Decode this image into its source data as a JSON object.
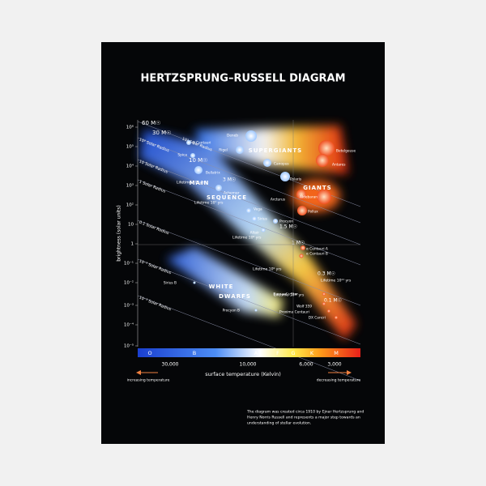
{
  "title": "HERTZSPRUNG–RUSSELL DIAGRAM",
  "y_axis": {
    "label": "brightness (solar units)",
    "ticks": [
      "10⁶",
      "10⁵",
      "10⁴",
      "10³",
      "10²",
      "10",
      "1",
      "10⁻¹",
      "10⁻²",
      "10⁻³",
      "10⁻⁴",
      "10⁻⁵"
    ]
  },
  "spectral_classes": [
    "O",
    "B",
    "A",
    "F",
    "G",
    "K",
    "M"
  ],
  "x_axis": {
    "label": "surface temperature (Kelvin)",
    "ticks": [
      "30,000",
      "10,000",
      "6,000",
      "3,000"
    ],
    "left_note": "increasing temperature",
    "right_note": "decreasing temperature"
  },
  "regions": [
    "SUPERGIANTS",
    "GIANTS",
    "MAIN",
    "SEQUENCE",
    "WHITE",
    "DWARFS"
  ],
  "radius_lines": [
    "10³ Solar Radius",
    "10² Solar Radius",
    "10 Solar Radius",
    "1 Solar Radius",
    "0.1 Solar Radius",
    "10⁻² Solar Radius",
    "10⁻³ Solar Radius"
  ],
  "masses": [
    "60 M☉",
    "30 M☉",
    "10 M☉",
    "3 M☉",
    "1.5 M☉",
    "1 M☉",
    "0.3 M☉",
    "0.1 M☉"
  ],
  "lifetimes": [
    "Lifetime 10⁶ yrs",
    "Lifetime 10⁷ yrs",
    "Lifetime 10⁸ yrs",
    "Lifetime 10⁹ yrs",
    "Lifetime 10¹⁰ yrs",
    "Lifetime 10¹¹ yrs"
  ],
  "stars": [
    "Deneb",
    "Rigel",
    "β Centauri",
    "Spica",
    "Bellatrix",
    "Achernar",
    "Vega",
    "Sirius",
    "Altair",
    "Procyon",
    "Canopus",
    "Polaris",
    "Betelgeuse",
    "Antares",
    "Arcturus",
    "Aldebaran",
    "Pollux",
    "α Centauri A",
    "α Centauri B",
    "Sirius B",
    "Procyon B",
    "Barnard's Star",
    "Wolf 359",
    "Proxima Centauri",
    "DX Cancri"
  ],
  "note": [
    "The diagram was created circa 1910 by Ejnar Hertzsprung and",
    "Henry Norris Russell and represents a major step towards an",
    "understanding of stellar evolution."
  ]
}
